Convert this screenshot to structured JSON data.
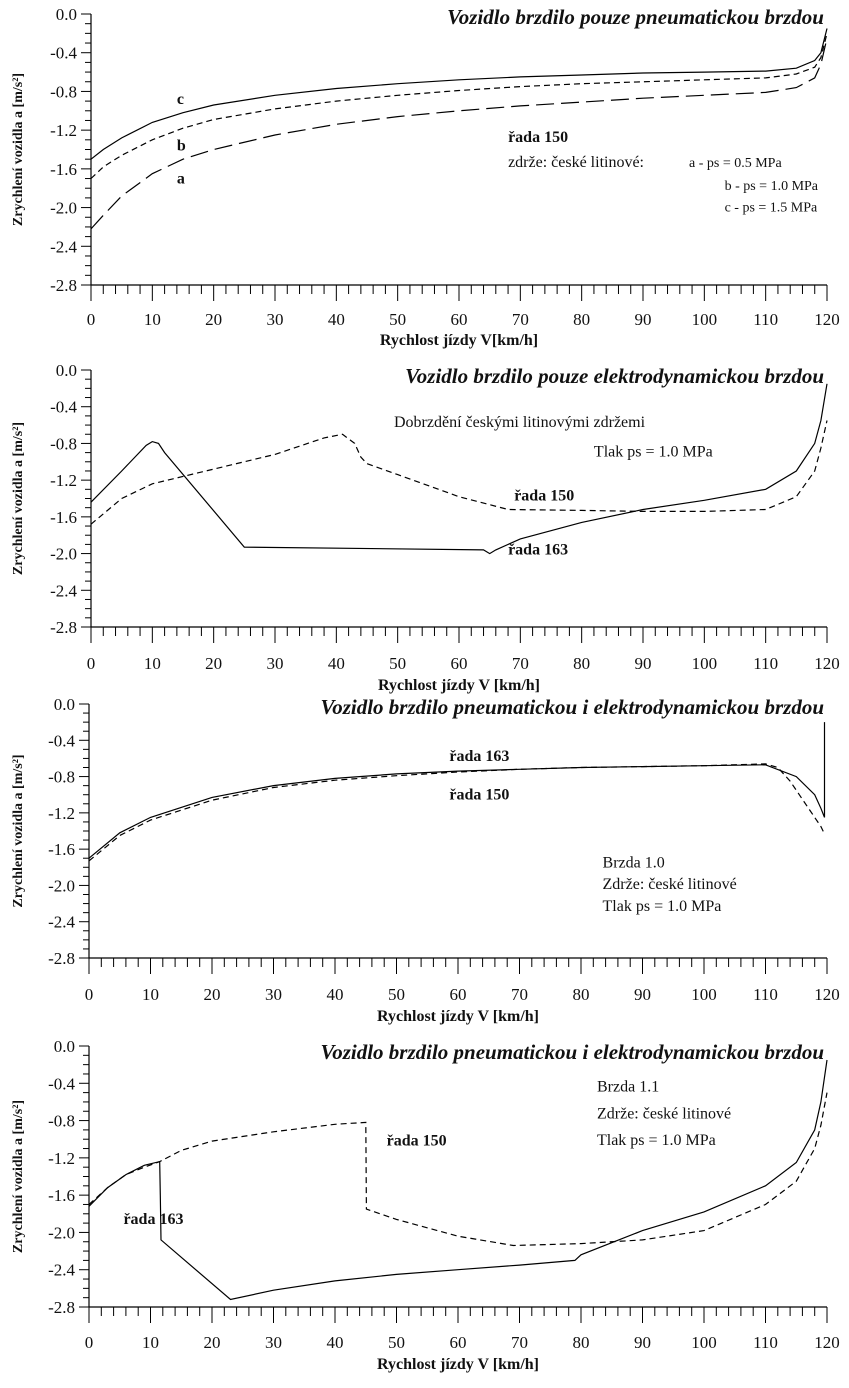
{
  "chart_data": [
    {
      "type": "line",
      "title": "Vozidlo brzdilo pouze pneumatickou brzdou",
      "xlabel": "Rychlost jízdy V[km/h]",
      "ylabel": "Zrychlení vozidla a [m/s²]",
      "xlim": [
        0,
        120
      ],
      "ylim": [
        -2.8,
        0.0
      ],
      "xticks": [
        "0",
        "10",
        "20",
        "30",
        "40",
        "50",
        "60",
        "70",
        "80",
        "90",
        "100",
        "110",
        "120"
      ],
      "yticks": [
        "0.0",
        "-0.4",
        "-0.8",
        "-1.2",
        "-1.6",
        "-2.0",
        "-2.4",
        "-2.8"
      ],
      "series": [
        {
          "name": "c",
          "style": "solid",
          "x": [
            0,
            2,
            5,
            10,
            15,
            20,
            30,
            40,
            50,
            60,
            70,
            80,
            90,
            100,
            110,
            115,
            118,
            119,
            120
          ],
          "y": [
            -1.5,
            -1.4,
            -1.28,
            -1.12,
            -1.02,
            -0.94,
            -0.84,
            -0.77,
            -0.72,
            -0.68,
            -0.65,
            -0.63,
            -0.61,
            -0.6,
            -0.59,
            -0.56,
            -0.48,
            -0.4,
            -0.15
          ]
        },
        {
          "name": "b",
          "style": "dashed",
          "x": [
            0,
            2,
            5,
            10,
            15,
            20,
            30,
            40,
            50,
            60,
            70,
            80,
            90,
            100,
            110,
            115,
            118,
            119,
            120
          ],
          "y": [
            -1.7,
            -1.58,
            -1.46,
            -1.3,
            -1.18,
            -1.09,
            -0.98,
            -0.9,
            -0.84,
            -0.79,
            -0.75,
            -0.72,
            -0.7,
            -0.68,
            -0.66,
            -0.62,
            -0.55,
            -0.45,
            -0.2
          ]
        },
        {
          "name": "a",
          "style": "longdash",
          "x": [
            0,
            2,
            5,
            10,
            15,
            20,
            30,
            40,
            50,
            60,
            70,
            80,
            90,
            100,
            110,
            115,
            118,
            119,
            120
          ],
          "y": [
            -2.22,
            -2.08,
            -1.88,
            -1.65,
            -1.5,
            -1.4,
            -1.25,
            -1.14,
            -1.06,
            -1.0,
            -0.95,
            -0.91,
            -0.87,
            -0.84,
            -0.81,
            -0.76,
            -0.66,
            -0.52,
            -0.25
          ]
        }
      ],
      "labels": [
        {
          "text": "c",
          "x": 14,
          "y": -0.93,
          "bold": true
        },
        {
          "text": "b",
          "x": 14,
          "y": -1.41,
          "bold": true
        },
        {
          "text": "a",
          "x": 14,
          "y": -1.75,
          "bold": true
        }
      ],
      "notes": [
        {
          "text": "řada 150",
          "x": 68,
          "y": -1.32,
          "bold": true
        },
        {
          "text": "zdrže: české litinové:",
          "x": 68,
          "y": -1.58
        },
        {
          "text": "a - ps = 0.5 MPa",
          "x": 97.5,
          "y": -1.58,
          "small": true
        },
        {
          "text": "b - ps = 1.0 MPa",
          "x": 103.3,
          "y": -1.82,
          "small": true
        },
        {
          "text": "c - ps = 1.5 MPa",
          "x": 103.3,
          "y": -2.04,
          "small": true
        }
      ]
    },
    {
      "type": "line",
      "title": "Vozidlo brzdilo pouze elektrodynamickou brzdou",
      "xlabel": "Rychlost jízdy V [km/h]",
      "ylabel": "Zrychlení vozidla a [m/s²]",
      "xlim": [
        0,
        120
      ],
      "ylim": [
        -2.8,
        0.0
      ],
      "xticks": [
        "0",
        "10",
        "20",
        "30",
        "40",
        "50",
        "60",
        "70",
        "80",
        "90",
        "100",
        "110",
        "120"
      ],
      "yticks": [
        "0.0",
        "-0.4",
        "-0.8",
        "-1.2",
        "-1.6",
        "-2.0",
        "-2.4",
        "-2.8"
      ],
      "series": [
        {
          "name": "řada 163",
          "style": "solid",
          "x": [
            0,
            5,
            9,
            10,
            11,
            12,
            25,
            64,
            65,
            66,
            70,
            80,
            90,
            100,
            110,
            115,
            118,
            119,
            120
          ],
          "y": [
            -1.44,
            -1.1,
            -0.82,
            -0.78,
            -0.8,
            -0.9,
            -1.93,
            -1.96,
            -2.0,
            -1.96,
            -1.84,
            -1.66,
            -1.52,
            -1.42,
            -1.3,
            -1.1,
            -0.8,
            -0.55,
            -0.15
          ]
        },
        {
          "name": "řada 150",
          "style": "dashed",
          "x": [
            0,
            5,
            10,
            20,
            30,
            38,
            41,
            43,
            44,
            45,
            50,
            60,
            68,
            80,
            90,
            100,
            110,
            115,
            118,
            119,
            120
          ],
          "y": [
            -1.68,
            -1.4,
            -1.24,
            -1.08,
            -0.92,
            -0.74,
            -0.7,
            -0.8,
            -0.95,
            -1.02,
            -1.14,
            -1.38,
            -1.52,
            -1.53,
            -1.54,
            -1.54,
            -1.52,
            -1.38,
            -1.1,
            -0.85,
            -0.55
          ]
        }
      ],
      "labels": [
        {
          "text": "řada 150",
          "x": 69,
          "y": -1.42,
          "bold": true
        },
        {
          "text": "řada 163",
          "x": 68,
          "y": -2.01,
          "bold": true
        }
      ],
      "notes": [
        {
          "text": "Dobrzdění českými litinovými zdržemi",
          "x": 49.4,
          "y": -0.62
        },
        {
          "text": "Tlak ps = 1.0 MPa",
          "x": 82,
          "y": -0.94
        }
      ]
    },
    {
      "type": "line",
      "title": "Vozidlo brzdilo pneumatickou i elektrodynamickou brzdou",
      "xlabel": "Rychlost jízdy V [km/h]",
      "ylabel": "Zrychlení vozidla a [m/s²]",
      "xlim": [
        0,
        120
      ],
      "ylim": [
        -2.8,
        0.0
      ],
      "xticks": [
        "0",
        "10",
        "20",
        "30",
        "40",
        "50",
        "60",
        "70",
        "80",
        "90",
        "100",
        "110",
        "120"
      ],
      "yticks": [
        "0.0",
        "-0.4",
        "-0.8",
        "-1.2",
        "-1.6",
        "-2.0",
        "-2.4",
        "-2.8"
      ],
      "series": [
        {
          "name": "řada 163",
          "style": "solid",
          "x": [
            0,
            5,
            10,
            20,
            30,
            40,
            50,
            60,
            70,
            80,
            90,
            100,
            110,
            115,
            118,
            119,
            119.6,
            119.6
          ],
          "y": [
            -1.7,
            -1.42,
            -1.25,
            -1.03,
            -0.9,
            -0.82,
            -0.77,
            -0.74,
            -0.72,
            -0.7,
            -0.69,
            -0.68,
            -0.67,
            -0.8,
            -1.0,
            -1.15,
            -1.25,
            -0.2
          ]
        },
        {
          "name": "řada 150",
          "style": "dashed",
          "x": [
            0,
            5,
            10,
            20,
            30,
            40,
            50,
            60,
            70,
            80,
            90,
            100,
            110,
            112,
            114,
            116,
            117,
            118,
            119,
            119.5
          ],
          "y": [
            -1.73,
            -1.45,
            -1.28,
            -1.06,
            -0.92,
            -0.84,
            -0.79,
            -0.75,
            -0.72,
            -0.7,
            -0.69,
            -0.68,
            -0.66,
            -0.7,
            -0.85,
            -1.05,
            -1.15,
            -1.25,
            -1.35,
            -1.42
          ]
        }
      ],
      "labels": [
        {
          "text": "řada 163",
          "x": 58.6,
          "y": -0.63,
          "bold": true
        },
        {
          "text": "řada 150",
          "x": 58.6,
          "y": -1.05,
          "bold": true
        }
      ],
      "notes": [
        {
          "text": "Brzda 1.0",
          "x": 83.5,
          "y": -1.8
        },
        {
          "text": "Zdrže: české litinové",
          "x": 83.5,
          "y": -2.04
        },
        {
          "text": "Tlak ps = 1.0 MPa",
          "x": 83.5,
          "y": -2.28
        }
      ]
    },
    {
      "type": "line",
      "title": "Vozidlo brzdilo pneumatickou i elektrodynamickou brzdou",
      "xlabel": "Rychlost jízdy V [km/h]",
      "ylabel": "Zrychlení vozidla a [m/s²]",
      "xlim": [
        0,
        120
      ],
      "ylim": [
        -2.8,
        0.0
      ],
      "xticks": [
        "0",
        "10",
        "20",
        "30",
        "40",
        "50",
        "60",
        "70",
        "80",
        "90",
        "100",
        "110",
        "120"
      ],
      "yticks": [
        "0.0",
        "-0.4",
        "-0.8",
        "-1.2",
        "-1.6",
        "-2.0",
        "-2.4",
        "-2.8"
      ],
      "series": [
        {
          "name": "řada 163",
          "style": "solid",
          "x": [
            0,
            3,
            6,
            9,
            11.5,
            11.6,
            11.7,
            23,
            30,
            40,
            50,
            60,
            70,
            79,
            80,
            90,
            100,
            110,
            115,
            118,
            119,
            120
          ],
          "y": [
            -1.72,
            -1.52,
            -1.38,
            -1.28,
            -1.24,
            -1.6,
            -2.08,
            -2.72,
            -2.62,
            -2.52,
            -2.45,
            -2.4,
            -2.35,
            -2.3,
            -2.24,
            -1.98,
            -1.78,
            -1.5,
            -1.25,
            -0.9,
            -0.6,
            -0.15
          ]
        },
        {
          "name": "řada 150",
          "style": "dashed",
          "x": [
            0,
            3,
            6,
            9,
            11.5,
            15,
            20,
            30,
            40,
            45,
            45.1,
            50,
            60,
            69,
            80,
            90,
            100,
            110,
            115,
            118,
            119,
            120
          ],
          "y": [
            -1.7,
            -1.52,
            -1.38,
            -1.3,
            -1.24,
            -1.12,
            -1.02,
            -0.92,
            -0.84,
            -0.82,
            -1.75,
            -1.86,
            -2.04,
            -2.14,
            -2.12,
            -2.08,
            -1.98,
            -1.7,
            -1.45,
            -1.1,
            -0.85,
            -0.5
          ]
        }
      ],
      "labels": [
        {
          "text": "řada 150",
          "x": 48.4,
          "y": -1.07,
          "bold": true
        },
        {
          "text": "řada 163",
          "x": 5.6,
          "y": -1.91,
          "bold": true
        }
      ],
      "notes": [
        {
          "text": "Brzda 1.1",
          "x": 82.6,
          "y": -0.49
        },
        {
          "text": "Zdrže: české litinové",
          "x": 82.6,
          "y": -0.78
        },
        {
          "text": "Tlak ps = 1.0 MPa",
          "x": 82.6,
          "y": -1.06
        }
      ]
    }
  ]
}
